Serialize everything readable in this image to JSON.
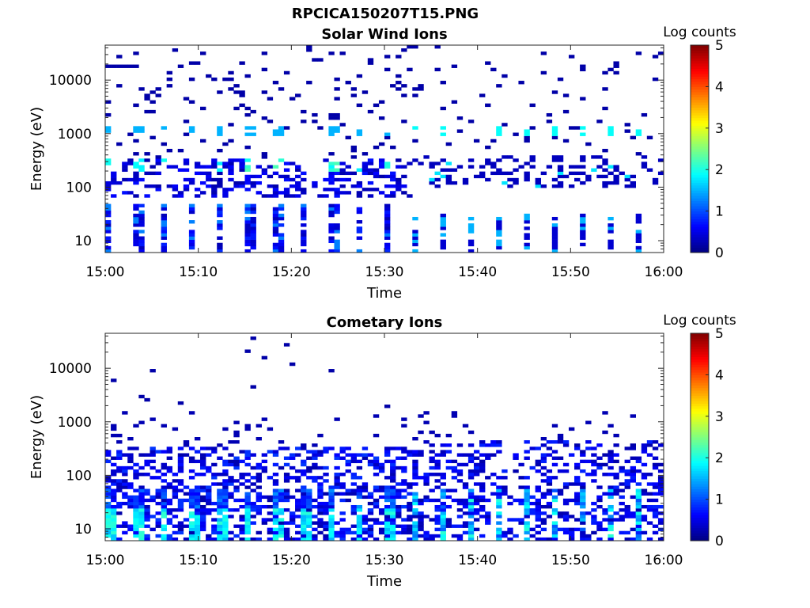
{
  "figure_title": "RPCICA150207T15.PNG",
  "chart_data": [
    {
      "type": "heatmap",
      "title": "Solar Wind Ions",
      "xlabel": "Time",
      "ylabel": "Energy (eV)",
      "x_range": [
        "15:00",
        "16:00"
      ],
      "x_ticks": [
        "15:00",
        "15:10",
        "15:20",
        "15:30",
        "15:40",
        "15:50",
        "16:00"
      ],
      "y_scale": "log",
      "ylim": [
        6,
        45000
      ],
      "y_ticks": [
        {
          "value": 10,
          "label": "10"
        },
        {
          "value": 100,
          "label": "100"
        },
        {
          "value": 1000,
          "label": "1000"
        },
        {
          "value": 10000,
          "label": "10000"
        }
      ],
      "colorbar": {
        "label": "Log counts",
        "range": [
          0,
          5
        ],
        "ticks": [
          "0",
          "1",
          "2",
          "3",
          "4",
          "5"
        ],
        "colormap": "jet"
      },
      "pattern": "solar_wind"
    },
    {
      "type": "heatmap",
      "title": "Cometary Ions",
      "xlabel": "Time",
      "ylabel": "Energy (eV)",
      "x_range": [
        "15:00",
        "16:00"
      ],
      "x_ticks": [
        "15:00",
        "15:10",
        "15:20",
        "15:30",
        "15:40",
        "15:50",
        "16:00"
      ],
      "y_scale": "log",
      "ylim": [
        6,
        45000
      ],
      "y_ticks": [
        {
          "value": 10,
          "label": "10"
        },
        {
          "value": 100,
          "label": "100"
        },
        {
          "value": 1000,
          "label": "1000"
        },
        {
          "value": 10000,
          "label": "10000"
        }
      ],
      "colorbar": {
        "label": "Log counts",
        "range": [
          0,
          5
        ],
        "ticks": [
          "0",
          "1",
          "2",
          "3",
          "4",
          "5"
        ],
        "colormap": "jet"
      },
      "pattern": "cometary"
    }
  ]
}
